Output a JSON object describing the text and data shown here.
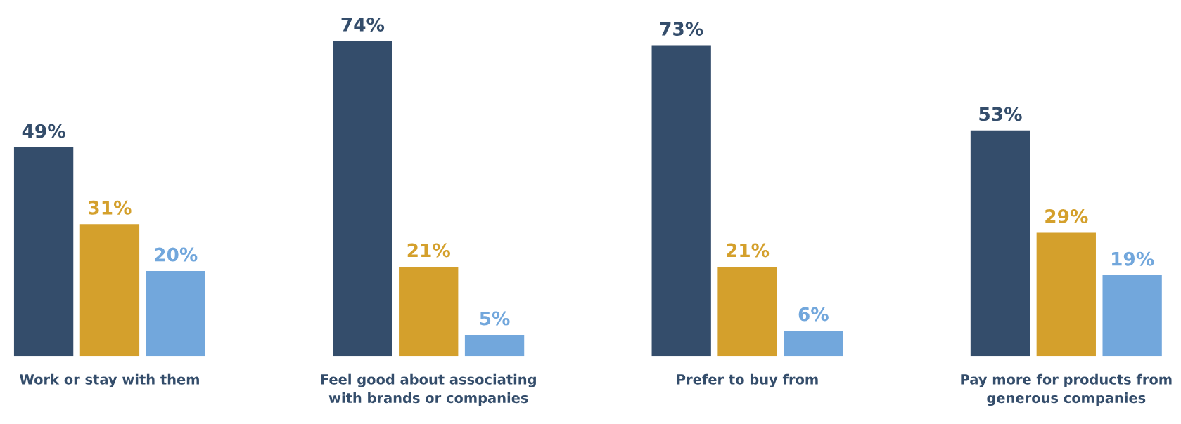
{
  "chart_data": {
    "type": "bar",
    "categories": [
      "Work or stay with them",
      "Feel good about associating\nwith brands or companies",
      "Prefer to buy from",
      "Pay more for products from\ngenerous companies"
    ],
    "series": [
      {
        "color": "#344d6b",
        "values": [
          49,
          74,
          73,
          53
        ],
        "value_labels": [
          "49%",
          "74%",
          "73%",
          "53%"
        ]
      },
      {
        "color": "#d4a02c",
        "values": [
          31,
          21,
          21,
          29
        ],
        "value_labels": [
          "31%",
          "21%",
          "21%",
          "29%"
        ]
      },
      {
        "color": "#72a7dc",
        "values": [
          20,
          5,
          6,
          19
        ],
        "value_labels": [
          "20%",
          "5%",
          "6%",
          "19%"
        ]
      }
    ]
  }
}
